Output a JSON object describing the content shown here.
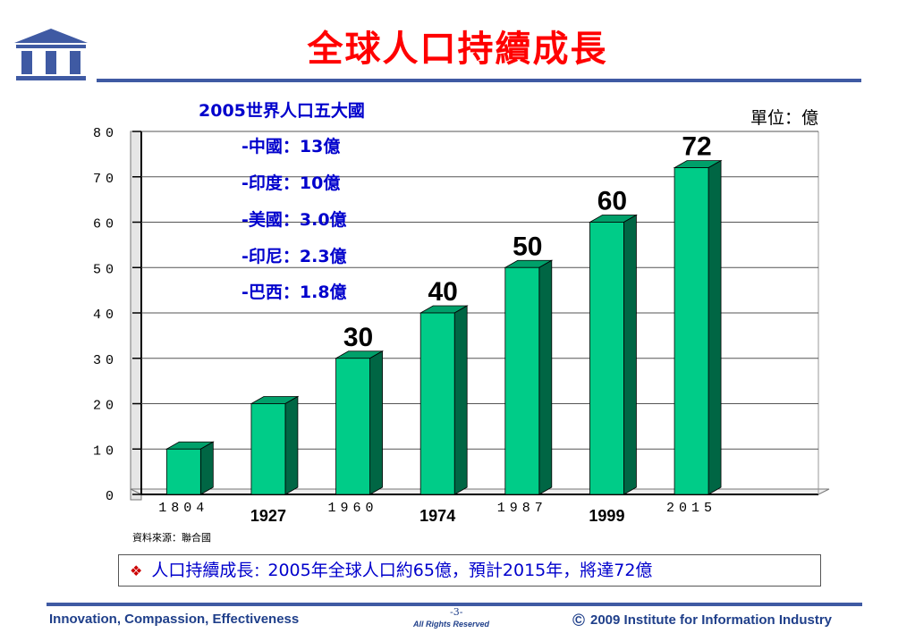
{
  "slide": {
    "title": "全球人口持續成長",
    "source": "資料來源：聯合國",
    "callout": {
      "bullet": "❖",
      "lead": "人口持續成長",
      "sep": "：",
      "text": "2005年全球人口約65億，預計2015年，將達72億"
    }
  },
  "footer": {
    "left": "Innovation, Compassion, Effectiveness",
    "page": "-3-",
    "rights": "All Rights Reserved",
    "copyright_symbol": "©",
    "right": "2009 Institute for Information Industry"
  },
  "colors": {
    "bar_front": "#00cc88",
    "bar_side": "#006644",
    "bar_top": "#00a06a",
    "title": "#ff0000",
    "annotation": "#0000cc",
    "rule": "#3f5aa3"
  },
  "chart_data": {
    "type": "bar",
    "categories": [
      "1804",
      "1927",
      "1960",
      "1974",
      "1987",
      "1999",
      "2015",
      ""
    ],
    "values": [
      10,
      20,
      30,
      40,
      50,
      60,
      72,
      null
    ],
    "data_labels": [
      "",
      "",
      "30",
      "40",
      "50",
      "60",
      "72",
      ""
    ],
    "ylim": [
      0,
      80
    ],
    "yticks": [
      "0",
      "10",
      "20",
      "30",
      "40",
      "50",
      "60",
      "70",
      "80"
    ],
    "unit_label": "單位：億",
    "grid": true,
    "annotation": {
      "heading": "2005世界人口五大國",
      "lines": [
        "-中國：13億",
        "-印度：10億",
        "-美國：3.0億",
        "-印尼：2.3億",
        "-巴西：1.8億"
      ]
    }
  }
}
